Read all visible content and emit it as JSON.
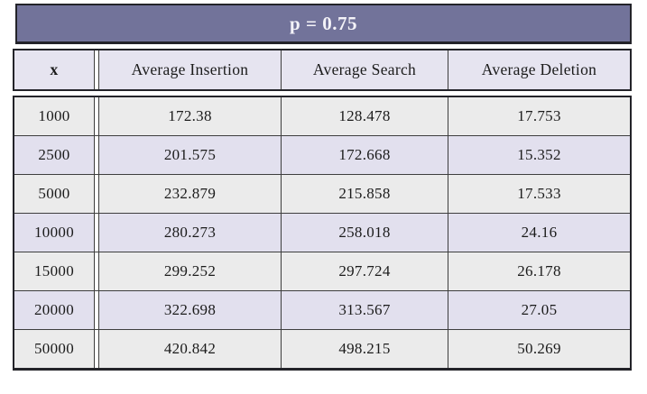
{
  "chart_data": {
    "type": "table",
    "title": "p = 0.75",
    "columns": [
      "x",
      "Average Insertion",
      "Average Search",
      "Average Deletion"
    ],
    "rows": [
      [
        1000,
        172.38,
        128.478,
        17.753
      ],
      [
        2500,
        201.575,
        172.668,
        15.352
      ],
      [
        5000,
        232.879,
        215.858,
        17.533
      ],
      [
        10000,
        280.273,
        258.018,
        24.16
      ],
      [
        15000,
        299.252,
        297.724,
        26.178
      ],
      [
        20000,
        322.698,
        313.567,
        27.05
      ],
      [
        50000,
        420.842,
        498.215,
        50.269
      ]
    ],
    "layout": {
      "row_stripes": [
        "gray",
        "lavender"
      ],
      "double_rule_after_first_column": true
    }
  },
  "colors": {
    "title-bg": "#72739a",
    "title-text": "#f4f3f8",
    "header-row-bg": "#e6e4f0",
    "row-gray": "#ebebeb",
    "row-lavender": "#e2e0ee",
    "border-dark": "#232329",
    "grid-line": "#3e3e3e",
    "text": "#1b1b1b"
  }
}
